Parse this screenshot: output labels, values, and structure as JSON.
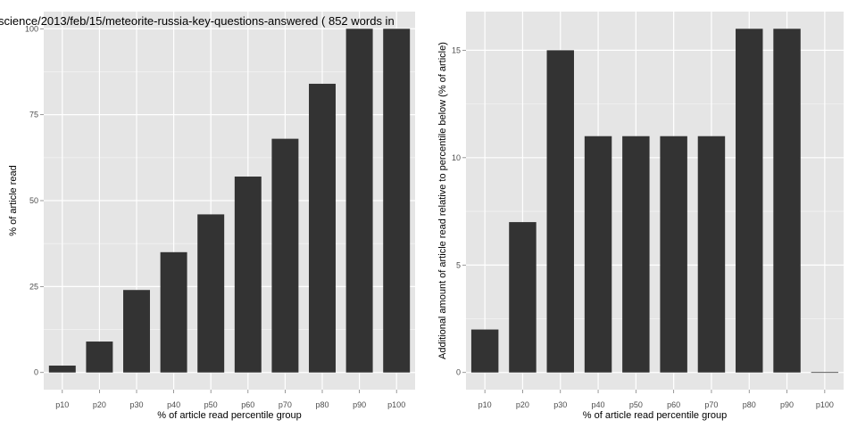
{
  "chart_data": [
    {
      "type": "bar",
      "title": "science/2013/feb/15/meteorite-russia-key-questions-answered ( 852 words in",
      "xlabel": "% of article read percentile group",
      "ylabel": "% of article read",
      "categories": [
        "p10",
        "p20",
        "p30",
        "p40",
        "p50",
        "p60",
        "p70",
        "p80",
        "p90",
        "p100"
      ],
      "values": [
        2,
        9,
        24,
        35,
        46,
        57,
        68,
        84,
        100,
        100
      ],
      "ylim": [
        -5,
        105
      ],
      "yticks": [
        0,
        25,
        50,
        75,
        100
      ],
      "yticks_labels": [
        "0",
        "25",
        "50",
        "75",
        "100"
      ],
      "grid": true,
      "colors": {
        "bar": "#333333",
        "panel": "#e5e5e5",
        "grid": "#ffffff"
      }
    },
    {
      "type": "bar",
      "title": "",
      "xlabel": "% of article read percentile group",
      "ylabel": "Additional amount of article read relative to percentile below (% of article)",
      "categories": [
        "p10",
        "p20",
        "p30",
        "p40",
        "p50",
        "p60",
        "p70",
        "p80",
        "p90",
        "p100"
      ],
      "values": [
        2,
        7,
        15,
        11,
        11,
        11,
        11,
        16,
        16,
        0
      ],
      "ylim": [
        -0.8,
        16.8
      ],
      "yticks": [
        0,
        5,
        10,
        15
      ],
      "yticks_labels": [
        "0",
        "5",
        "10",
        "15"
      ],
      "grid": true,
      "colors": {
        "bar": "#333333",
        "panel": "#e5e5e5",
        "grid": "#ffffff"
      }
    }
  ]
}
